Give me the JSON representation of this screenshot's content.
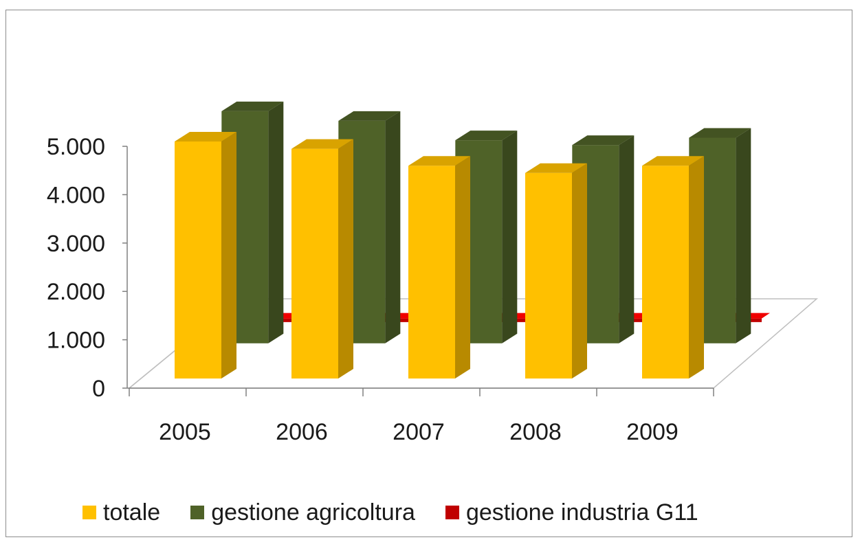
{
  "chart_data": {
    "type": "bar",
    "categories": [
      "2005",
      "2006",
      "2007",
      "2008",
      "2009"
    ],
    "series": [
      {
        "name": "totale",
        "values": [
          4900,
          4750,
          4400,
          4250,
          4400
        ],
        "color": "#ffc000"
      },
      {
        "name": "gestione agricoltura",
        "values": [
          4800,
          4600,
          4200,
          4100,
          4250
        ],
        "color": "#4f6228"
      },
      {
        "name": "gestione industria G11",
        "values": [
          150,
          150,
          150,
          150,
          150
        ],
        "color": "#c00000"
      }
    ],
    "y_ticks": [
      "0",
      "1.000",
      "2.000",
      "3.000",
      "4.000",
      "5.000"
    ],
    "ylim": [
      0,
      5000
    ],
    "legend_position": "bottom",
    "grid": false,
    "style": "3d-clustered-columns"
  }
}
